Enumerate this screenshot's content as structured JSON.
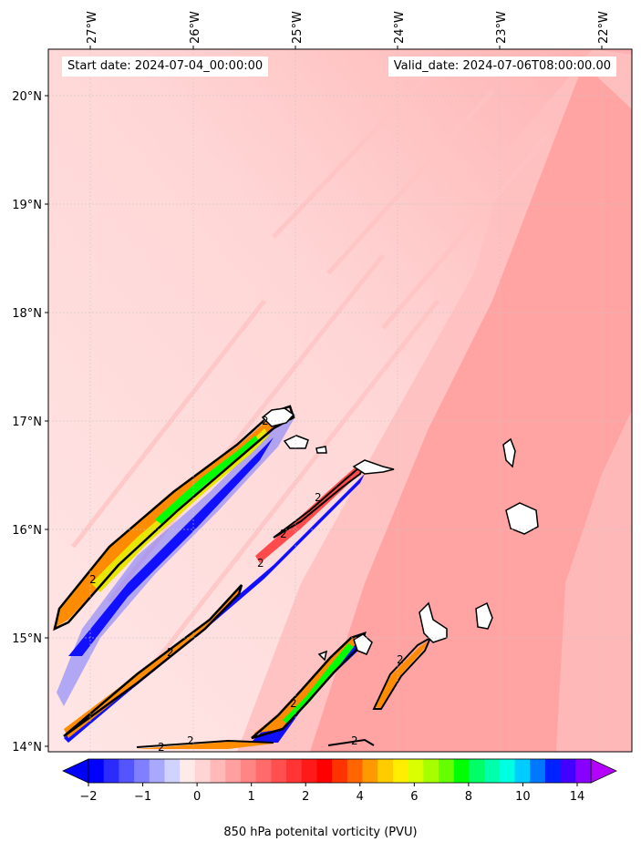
{
  "map": {
    "start_date": "Start date: 2024-07-04_00:00:00",
    "valid_date": "Valid_date: 2024-07-06T08:00:00.00",
    "lon_labels": [
      "27°W",
      "26°W",
      "25°W",
      "24°W",
      "23°W",
      "22°W"
    ],
    "lat_labels": [
      "20°N",
      "19°N",
      "18°N",
      "17°N",
      "16°N",
      "15°N",
      "14°N"
    ],
    "contour_label": "2",
    "colors": {
      "background_field": "#ffe6e6",
      "light_red": "#ffc8c8",
      "mid_red": "#ff9a9a",
      "strong_red": "#ff4b4b",
      "blue": "#1010ff",
      "light_blue": "#b9b9ff",
      "orange": "#ff8c00",
      "yellow": "#e6e600",
      "green": "#00ff00",
      "coast": "#000000"
    }
  },
  "colorbar": {
    "title": "850 hPa potenital vorticity (PVU)",
    "tick_labels": [
      "−2",
      "−1",
      "0",
      "1",
      "2",
      "4",
      "6",
      "8",
      "10",
      "14"
    ],
    "colors": [
      "#0000ff",
      "#2b2bff",
      "#5555ff",
      "#7f7fff",
      "#a8a8ff",
      "#d2d2ff",
      "#ffeaea",
      "#ffd4d4",
      "#ffb9b9",
      "#ff9f9f",
      "#ff8484",
      "#ff6a6a",
      "#ff4f4f",
      "#ff3535",
      "#ff1a1a",
      "#ff0000",
      "#ff3300",
      "#ff6600",
      "#ff9900",
      "#ffcc00",
      "#ffee00",
      "#d9ff00",
      "#a6ff00",
      "#66ff00",
      "#00ff00",
      "#00ff66",
      "#00ffaa",
      "#00ffe0",
      "#00ccff",
      "#0077ff",
      "#0022ff",
      "#4400ff",
      "#8800ff"
    ],
    "extend_low_color": "#0000ff",
    "extend_high_color": "#b300ff"
  }
}
